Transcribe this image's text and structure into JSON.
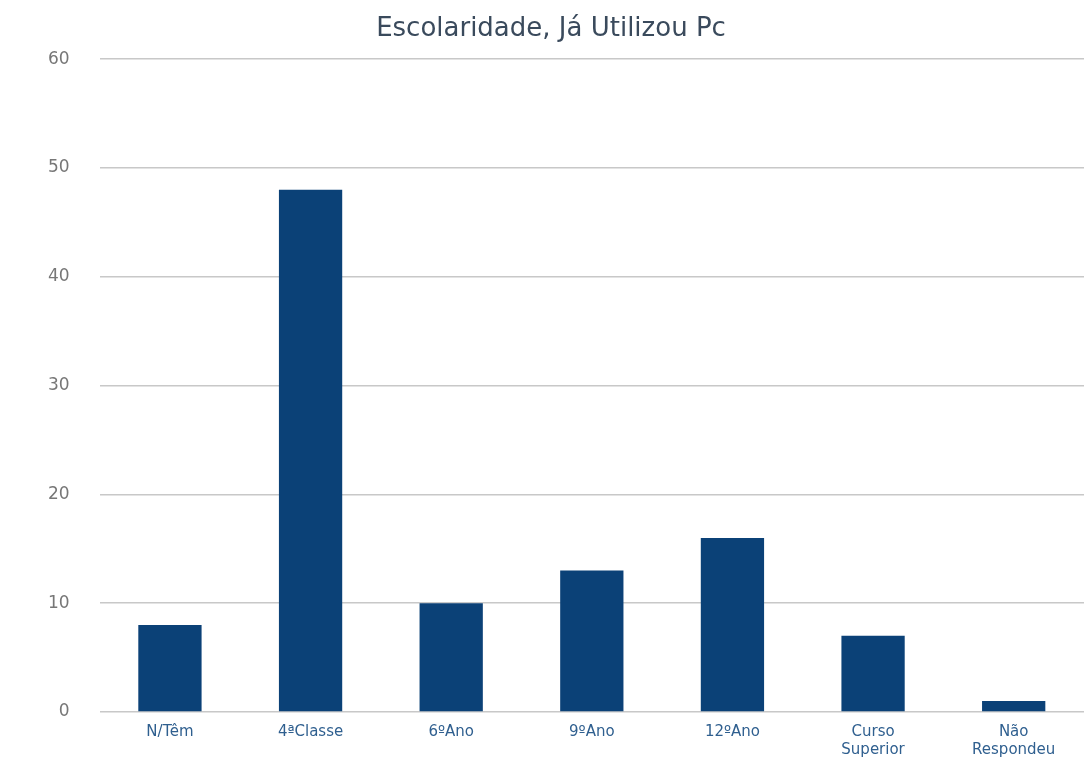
{
  "chart_data": {
    "type": "bar",
    "title": "Escolaridade, Já Utilizou Pc",
    "categories": [
      "N/Têm",
      "4ªClasse",
      "6ºAno",
      "9ºAno",
      "12ºAno",
      "Curso Superior",
      "Não Respondeu"
    ],
    "values": [
      8,
      48,
      10,
      13,
      16,
      7,
      1
    ],
    "color": "#0b4177",
    "ylim": [
      0,
      60
    ],
    "yticks": [
      0,
      10,
      20,
      30,
      40,
      50,
      60
    ],
    "grid": "y"
  }
}
